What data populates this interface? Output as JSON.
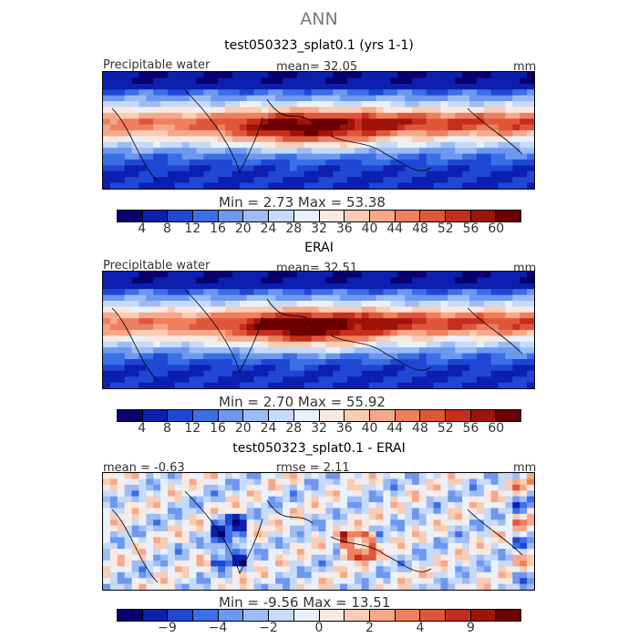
{
  "figure_title": "ANN",
  "colors": {
    "ramp": [
      "#08006e",
      "#0c1fae",
      "#1f47d4",
      "#3a6fe6",
      "#6d97f0",
      "#9dbcf6",
      "#c6daf9",
      "#eaf1fb",
      "#fbe9df",
      "#f9ccb4",
      "#f6a98a",
      "#ef7f5e",
      "#e0563a",
      "#c62d1c",
      "#a01309",
      "#6c0000"
    ]
  },
  "panels": [
    {
      "title": "test050323_splat0.1 (yrs 1-1)",
      "left_label": "Precipitable water",
      "center_label": "mean=   32.05",
      "right_label": "mm",
      "minmax_label": "Min =    2.73  Max =   53.38",
      "colorbar_ticks": [
        "4",
        "8",
        "12",
        "16",
        "20",
        "24",
        "28",
        "32",
        "36",
        "40",
        "44",
        "48",
        "52",
        "56",
        "60"
      ],
      "field": {
        "mean": 32.05,
        "min": 2.73,
        "max": 53.38,
        "units": "mm"
      }
    },
    {
      "title": "ERAI",
      "left_label": "Precipitable water",
      "center_label": "mean=   32.51",
      "right_label": "mm",
      "minmax_label": "Min =    2.70  Max =   55.92",
      "colorbar_ticks": [
        "4",
        "8",
        "12",
        "16",
        "20",
        "24",
        "28",
        "32",
        "36",
        "40",
        "44",
        "48",
        "52",
        "56",
        "60"
      ],
      "field": {
        "mean": 32.51,
        "min": 2.7,
        "max": 55.92,
        "units": "mm"
      }
    },
    {
      "title": "test050323_splat0.1 - ERAI",
      "left_label": "mean =   -0.63",
      "center_label": "rmse =    2.11",
      "right_label": "mm",
      "minmax_label": "Min =   -9.56  Max =   13.51",
      "colorbar_ticks": [
        "−9",
        "−4",
        "−2",
        "0",
        "2",
        "4",
        "9"
      ],
      "field": {
        "mean": -0.63,
        "rmse": 2.11,
        "min": -9.56,
        "max": 13.51,
        "units": "mm"
      }
    }
  ]
}
